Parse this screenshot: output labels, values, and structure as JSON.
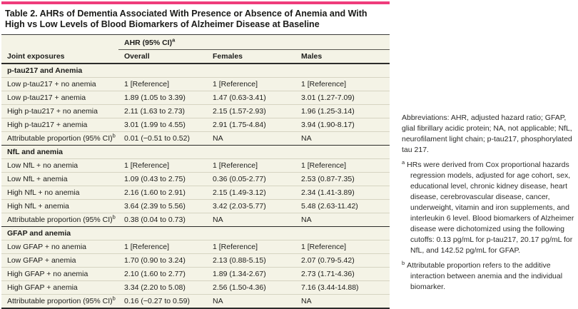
{
  "colors": {
    "accent_bar": "#EF3C7C",
    "table_background": "#F4F3E6"
  },
  "table": {
    "title": "Table 2. AHRs of Dementia Associated With Presence or Absence of Anemia and With High vs Low Levels of Blood Biomarkers of Alzheimer Disease at Baseline",
    "group_header": "AHR (95% CI)",
    "group_header_sup": "a",
    "columns": [
      "Joint exposures",
      "Overall",
      "Females",
      "Males"
    ],
    "sections": [
      {
        "header": "p-tau217 and Anemia",
        "rows": [
          {
            "label": "Low p-tau217 + no anemia",
            "overall": "1 [Reference]",
            "females": "1 [Reference]",
            "males": "1 [Reference]"
          },
          {
            "label": "Low p-tau217 + anemia",
            "overall": "1.89 (1.05 to 3.39)",
            "females": "1.47 (0.63-3.41)",
            "males": "3.01 (1.27-7.09)"
          },
          {
            "label": "High p-tau217 + no anemia",
            "overall": "2.11 (1.63 to 2.73)",
            "females": "2.15 (1.57-2.93)",
            "males": "1.96 (1.25-3.14)"
          },
          {
            "label": "High p-tau217 + anemia",
            "overall": "3.01 (1.99 to 4.55)",
            "females": "2.91 (1.75-4.84)",
            "males": "3.94 (1.90-8.17)"
          },
          {
            "label": "Attributable proportion (95% CI)",
            "label_sup": "b",
            "overall": "0.01 (−0.51 to 0.52)",
            "females": "NA",
            "males": "NA"
          }
        ]
      },
      {
        "header": "NfL and anemia",
        "rows": [
          {
            "label": "Low NfL + no anemia",
            "overall": "1 [Reference]",
            "females": "1 [Reference]",
            "males": "1 [Reference]"
          },
          {
            "label": "Low NfL + anemia",
            "overall": "1.09 (0.43 to 2.75)",
            "females": "0.36 (0.05-2.77)",
            "males": "2.53 (0.87-7.35)"
          },
          {
            "label": "High NfL + no anemia",
            "overall": "2.16 (1.60 to 2.91)",
            "females": "2.15 (1.49-3.12)",
            "males": "2.34 (1.41-3.89)"
          },
          {
            "label": "High NfL + anemia",
            "overall": "3.64 (2.39 to 5.56)",
            "females": "3.42 (2.03-5.77)",
            "males": "5.48 (2.63-11.42)"
          },
          {
            "label": "Attributable proportion (95% CI)",
            "label_sup": "b",
            "overall": "0.38 (0.04 to 0.73)",
            "females": "NA",
            "males": "NA"
          }
        ]
      },
      {
        "header": "GFAP and anemia",
        "rows": [
          {
            "label": "Low GFAP + no anemia",
            "overall": "1 [Reference]",
            "females": "1 [Reference]",
            "males": "1 [Reference]"
          },
          {
            "label": "Low GFAP + anemia",
            "overall": "1.70 (0.90 to 3.24)",
            "females": "2.13 (0.88-5.15)",
            "males": "2.07 (0.79-5.42)"
          },
          {
            "label": "High GFAP + no anemia",
            "overall": "2.10 (1.60 to 2.77)",
            "females": "1.89 (1.34-2.67)",
            "males": "2.73 (1.71-4.36)"
          },
          {
            "label": "High GFAP + anemia",
            "overall": "3.34 (2.20 to 5.08)",
            "females": "2.56 (1.50-4.36)",
            "males": "7.16 (3.44-14.88)"
          },
          {
            "label": "Attributable proportion (95% CI)",
            "label_sup": "b",
            "overall": "0.16 (−0.27 to 0.59)",
            "females": "NA",
            "males": "NA"
          }
        ]
      }
    ]
  },
  "footnotes": {
    "abbreviations": "Abbreviations: AHR, adjusted hazard ratio; GFAP, glial fibrillary acidic protein; NA, not applicable; NfL, neurofilament light chain; p-tau217, phosphorylated tau 217.",
    "items": [
      {
        "marker": "a",
        "text": "HRs were derived from Cox proportional hazards regression models, adjusted for age cohort, sex, educational level, chronic kidney disease, heart disease, cerebrovascular disease, cancer, underweight, vitamin and iron supplements, and interleukin 6 level. Blood biomarkers of Alzheimer disease were dichotomized using the following cutoffs: 0.13 pg/mL for p-tau217, 20.17 pg/mL for NfL, and 142.52 pg/mL for GFAP."
      },
      {
        "marker": "b",
        "text": "Attributable proportion refers to the additive interaction between anemia and the individual biomarker."
      }
    ]
  }
}
